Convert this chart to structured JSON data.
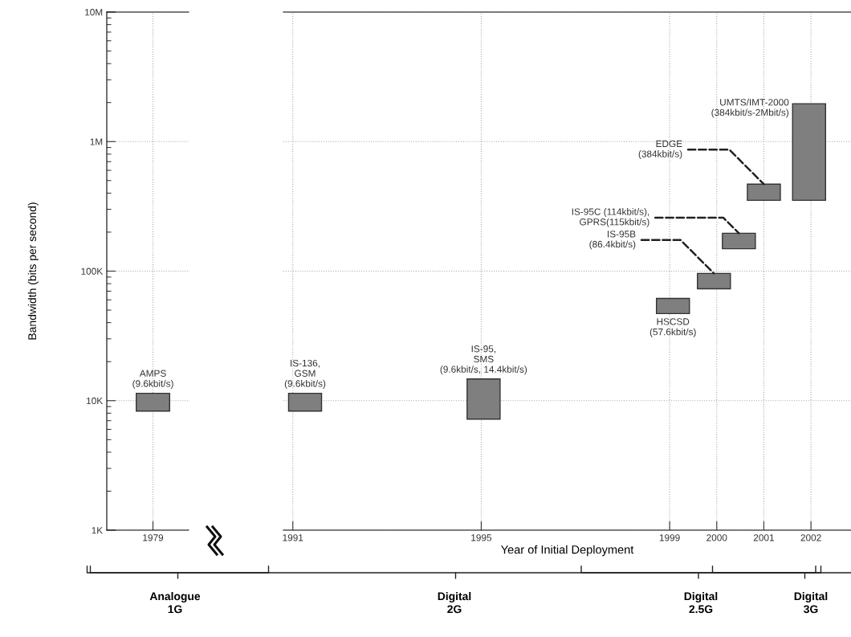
{
  "chart_data": [
    {
      "type": "bar",
      "ylabel": "Bandwidth (bits per second)",
      "categories": [
        "1979"
      ],
      "base": [
        8300
      ],
      "values": [
        3100
      ],
      "color": "#7f7f7f",
      "log": true,
      "ylim": [
        1000,
        10000000
      ],
      "yticks": [
        {
          "value": 1000,
          "label": "1K"
        },
        {
          "value": 10000,
          "label": "10K"
        },
        {
          "value": 100000,
          "label": "100K"
        },
        {
          "value": 1000000,
          "label": "1M"
        },
        {
          "value": 10000000,
          "label": "10M"
        }
      ],
      "grid": true,
      "annotations": [
        {
          "text": "AMPS\n(9.6kbit/s)",
          "x": "1979",
          "y": 11400
        },
        "Analogue\n1G"
      ]
    },
    {
      "type": "bar",
      "xlabel": "Year of Initial Deployment",
      "x": [
        1991.26,
        1995.05,
        1999.07,
        1999.94,
        2000.47,
        2001.0,
        2001.96
      ],
      "base": [
        8300,
        7200,
        47000,
        73000,
        149000,
        352000,
        352000
      ],
      "values": [
        3100,
        7500,
        14500,
        23000,
        47000,
        117000,
        1608000
      ],
      "color": "#7f7f7f",
      "log": true,
      "ylim": [
        1000,
        10000000
      ],
      "yticks": [
        1000,
        10000,
        100000,
        1000000,
        10000000
      ],
      "xlim": [
        1990.8,
        2002.85
      ],
      "xticks": [
        1991,
        1995,
        1999,
        2000,
        2001,
        2002
      ],
      "grid": true,
      "tick_labels": "x",
      "annotations": [
        {
          "text": "IS-136,\nGSM\n(9.6kbit/s)",
          "x": 1991.26,
          "y": 11400
        },
        {
          "text": "IS-95,\nSMS\n(9.6kbit/s, 14.4kbit/s)",
          "x": 1995.05,
          "y": 14700
        },
        {
          "text": "HSCSD\n(57.6kbit/s)",
          "x": 1999.07,
          "y": 47000
        },
        {
          "text": "IS-95B\n(86.4kbit/s)",
          "x": 1999.94,
          "y": 96000
        },
        {
          "text": "IS-95C (114kbit/s),\nGPRS(115kbit/s)",
          "x": 2000.47,
          "y": 196000
        },
        {
          "text": "EDGE\n(384kbit/s)",
          "x": 2001.0,
          "y": 469000
        },
        {
          "text": "UMTS/IMT-2000\n(384kbit/s-2Mbit/s)",
          "x": 2001.96,
          "y": 1960000
        },
        "Digital\n2G",
        "Digital\n2.5G",
        "Digital\n3G"
      ]
    }
  ]
}
